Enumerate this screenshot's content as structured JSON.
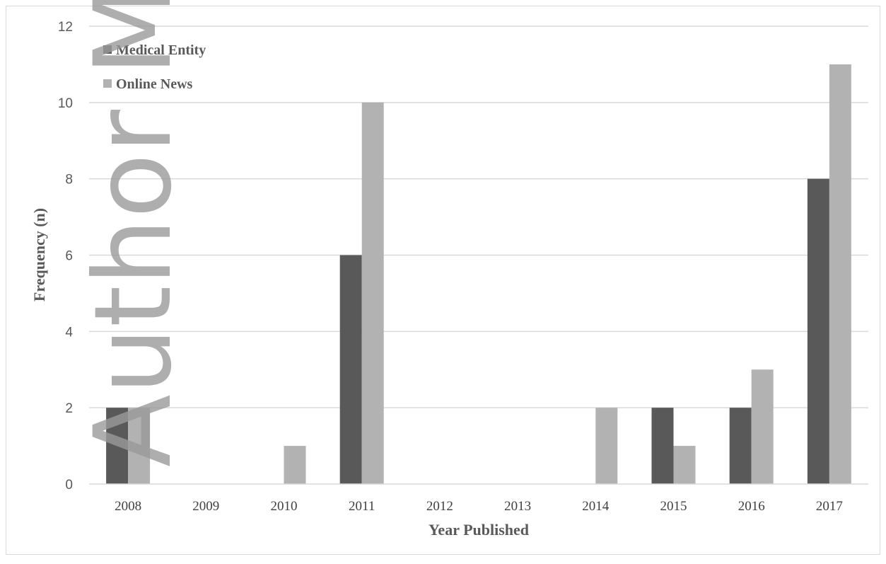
{
  "watermark": "Author M",
  "chart_data": {
    "type": "bar",
    "title": "",
    "xlabel": "Year Published",
    "ylabel": "Frequency (n)",
    "categories": [
      "2008",
      "2009",
      "2010",
      "2011",
      "2012",
      "2013",
      "2014",
      "2015",
      "2016",
      "2017"
    ],
    "series": [
      {
        "name": "Medical Entity",
        "color": "#595959",
        "values": [
          2,
          0,
          0,
          6,
          0,
          0,
          0,
          2,
          2,
          8
        ]
      },
      {
        "name": "Online News",
        "color": "#b2b2b2",
        "values": [
          2,
          0,
          1,
          10,
          0,
          0,
          2,
          1,
          3,
          11
        ]
      }
    ],
    "ylim": [
      0,
      12
    ],
    "yticks": [
      0,
      2,
      4,
      6,
      8,
      10,
      12
    ],
    "grid": true,
    "legend": "top-left"
  }
}
